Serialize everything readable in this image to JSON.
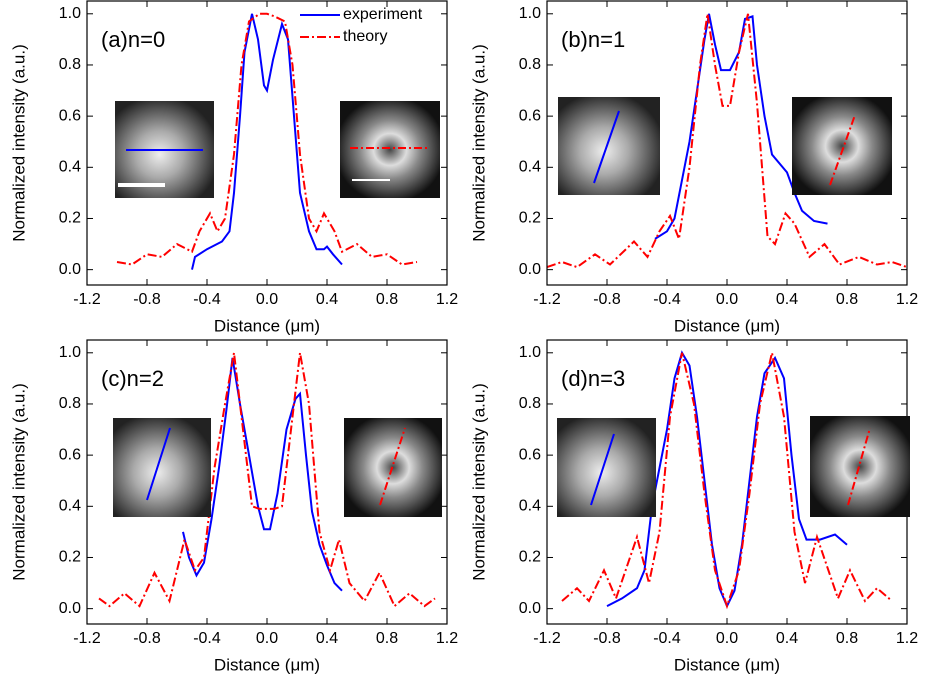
{
  "chart_data": [
    {
      "type": "line",
      "label": "(a)n=0",
      "xlabel": "Distance (μm)",
      "ylabel": "Normalized intensity (a.u.)",
      "legend": "upper right",
      "xlim": [
        -1.2,
        1.2
      ],
      "ylim": [
        -0.06,
        1.05
      ],
      "xticks": [
        -1.2,
        -0.8,
        -0.4,
        {
          "value": 0,
          "label": "0.0"
        },
        0.4,
        0.8,
        1.2
      ],
      "yticks": [
        {
          "value": 0,
          "label": "0.0"
        },
        0.2,
        0.4,
        0.6,
        0.8,
        {
          "value": 1,
          "label": "1.0"
        }
      ],
      "series": [
        {
          "name": "experiment",
          "color": "#0000ff",
          "style": "solid",
          "x": [
            -0.5,
            -0.48,
            -0.4,
            -0.3,
            -0.25,
            -0.22,
            -0.18,
            -0.15,
            -0.1,
            -0.06,
            -0.02,
            0,
            0.04,
            0.1,
            0.14,
            0.18,
            0.22,
            0.28,
            0.33,
            0.38,
            0.4,
            0.44,
            0.5
          ],
          "values": [
            0,
            0.05,
            0.08,
            0.11,
            0.15,
            0.3,
            0.6,
            0.85,
            1,
            0.9,
            0.72,
            0.7,
            0.82,
            0.96,
            0.9,
            0.6,
            0.3,
            0.15,
            0.08,
            0.08,
            0.09,
            0.06,
            0.02
          ]
        },
        {
          "name": "theory",
          "color": "#ff0000",
          "style": "dash-dot",
          "x": [
            -1,
            -0.9,
            -0.8,
            -0.7,
            -0.6,
            -0.5,
            -0.45,
            -0.38,
            -0.33,
            -0.28,
            -0.22,
            -0.17,
            -0.12,
            -0.05,
            0,
            0.05,
            0.12,
            0.17,
            0.22,
            0.28,
            0.33,
            0.38,
            0.45,
            0.5,
            0.6,
            0.7,
            0.8,
            0.9,
            1
          ],
          "values": [
            0.03,
            0.02,
            0.06,
            0.05,
            0.1,
            0.07,
            0.15,
            0.22,
            0.15,
            0.2,
            0.45,
            0.8,
            0.97,
            1,
            1,
            0.99,
            0.97,
            0.8,
            0.45,
            0.2,
            0.15,
            0.22,
            0.15,
            0.07,
            0.1,
            0.05,
            0.06,
            0.02,
            0.03
          ]
        }
      ]
    },
    {
      "type": "line",
      "label": "(b)n=1",
      "xlabel": "Distance (μm)",
      "ylabel": "Normalized intensity (a.u.)",
      "xlim": [
        -1.2,
        1.2
      ],
      "ylim": [
        -0.06,
        1.05
      ],
      "xticks": [
        -1.2,
        -0.8,
        -0.4,
        {
          "value": 0,
          "label": "0.0"
        },
        0.4,
        0.8,
        1.2
      ],
      "yticks": [
        {
          "value": 0,
          "label": "0.0"
        },
        0.2,
        0.4,
        0.6,
        0.8,
        {
          "value": 1,
          "label": "1.0"
        }
      ],
      "series": [
        {
          "color": "#0000ff",
          "style": "solid",
          "x": [
            -0.48,
            -0.4,
            -0.35,
            -0.3,
            -0.25,
            -0.2,
            -0.15,
            -0.12,
            -0.08,
            -0.04,
            0.02,
            0.08,
            0.12,
            0.17,
            0.2,
            0.25,
            0.3,
            0.4,
            0.45,
            0.5,
            0.58,
            0.67
          ],
          "values": [
            0.12,
            0.15,
            0.2,
            0.35,
            0.5,
            0.7,
            0.9,
            1,
            0.88,
            0.78,
            0.78,
            0.85,
            0.98,
            0.99,
            0.8,
            0.6,
            0.45,
            0.38,
            0.3,
            0.23,
            0.19,
            0.18
          ]
        },
        {
          "color": "#ff0000",
          "style": "dash-dot",
          "x": [
            -1.2,
            -1.1,
            -1,
            -0.88,
            -0.78,
            -0.62,
            -0.53,
            -0.45,
            -0.38,
            -0.32,
            -0.25,
            -0.18,
            -0.13,
            -0.08,
            -0.03,
            0.02,
            0.08,
            0.14,
            0.2,
            0.27,
            0.32,
            0.39,
            0.45,
            0.55,
            0.65,
            0.75,
            0.88,
            1,
            1.1,
            1.2
          ],
          "values": [
            0.01,
            0.03,
            0.01,
            0.06,
            0.02,
            0.11,
            0.05,
            0.15,
            0.21,
            0.12,
            0.4,
            0.8,
            1,
            0.8,
            0.64,
            0.64,
            0.85,
            1,
            0.65,
            0.13,
            0.1,
            0.22,
            0.18,
            0.05,
            0.1,
            0.02,
            0.05,
            0.02,
            0.03,
            0.01
          ]
        }
      ]
    },
    {
      "type": "line",
      "label": "(c)n=2",
      "xlabel": "Distance (μm)",
      "ylabel": "Normalized intensity (a.u.)",
      "xlim": [
        -1.2,
        1.2
      ],
      "ylim": [
        -0.06,
        1.05
      ],
      "xticks": [
        -1.2,
        -0.8,
        -0.4,
        {
          "value": 0,
          "label": "0.0"
        },
        0.4,
        0.8,
        1.2
      ],
      "yticks": [
        {
          "value": 0,
          "label": "0.0"
        },
        0.2,
        0.4,
        0.6,
        0.8,
        {
          "value": 1,
          "label": "1.0"
        }
      ],
      "series": [
        {
          "color": "#0000ff",
          "style": "solid",
          "x": [
            -0.56,
            -0.52,
            -0.47,
            -0.42,
            -0.37,
            -0.32,
            -0.27,
            -0.23,
            -0.18,
            -0.12,
            -0.06,
            -0.02,
            0.02,
            0.07,
            0.13,
            0.19,
            0.22,
            0.26,
            0.3,
            0.35,
            0.4,
            0.45,
            0.5
          ],
          "values": [
            0.3,
            0.2,
            0.13,
            0.18,
            0.35,
            0.55,
            0.78,
            0.98,
            0.8,
            0.6,
            0.4,
            0.31,
            0.31,
            0.45,
            0.7,
            0.82,
            0.84,
            0.6,
            0.38,
            0.25,
            0.17,
            0.1,
            0.07
          ]
        },
        {
          "color": "#ff0000",
          "style": "dash-dot",
          "x": [
            -1.12,
            -1.05,
            -0.95,
            -0.85,
            -0.75,
            -0.65,
            -0.55,
            -0.48,
            -0.42,
            -0.35,
            -0.28,
            -0.22,
            -0.17,
            -0.1,
            -0.05,
            0.05,
            0.1,
            0.17,
            0.22,
            0.28,
            0.35,
            0.42,
            0.48,
            0.55,
            0.65,
            0.75,
            0.85,
            0.95,
            1.05,
            1.12
          ],
          "values": [
            0.04,
            0.01,
            0.06,
            0.01,
            0.14,
            0.03,
            0.27,
            0.15,
            0.2,
            0.55,
            0.8,
            1,
            0.75,
            0.4,
            0.39,
            0.39,
            0.4,
            0.75,
            1,
            0.8,
            0.3,
            0.15,
            0.27,
            0.1,
            0.03,
            0.14,
            0.01,
            0.06,
            0.01,
            0.04
          ]
        }
      ]
    },
    {
      "type": "line",
      "label": "(d)n=3",
      "xlabel": "Distance (μm)",
      "ylabel": "Normalized intensity (a.u.)",
      "xlim": [
        -1.2,
        1.2
      ],
      "ylim": [
        -0.06,
        1.05
      ],
      "xticks": [
        -1.2,
        -0.8,
        -0.4,
        {
          "value": 0,
          "label": "0.0"
        },
        0.4,
        0.8,
        1.2
      ],
      "yticks": [
        {
          "value": 0,
          "label": "0.0"
        },
        0.2,
        0.4,
        0.6,
        0.8,
        {
          "value": 1,
          "label": "1.0"
        }
      ],
      "series": [
        {
          "color": "#0000ff",
          "style": "solid",
          "x": [
            -0.8,
            -0.7,
            -0.6,
            -0.55,
            -0.5,
            -0.45,
            -0.4,
            -0.35,
            -0.3,
            -0.25,
            -0.2,
            -0.15,
            -0.1,
            -0.05,
            0,
            0.05,
            0.1,
            0.15,
            0.2,
            0.25,
            0.32,
            0.38,
            0.43,
            0.48,
            0.53,
            0.62,
            0.72,
            0.8
          ],
          "values": [
            0.01,
            0.04,
            0.08,
            0.15,
            0.4,
            0.55,
            0.7,
            0.9,
            1,
            0.95,
            0.75,
            0.5,
            0.25,
            0.08,
            0.01,
            0.07,
            0.25,
            0.5,
            0.75,
            0.92,
            0.98,
            0.9,
            0.6,
            0.35,
            0.27,
            0.27,
            0.29,
            0.25
          ]
        },
        {
          "color": "#ff0000",
          "style": "dash-dot",
          "x": [
            -1.1,
            -1,
            -0.92,
            -0.82,
            -0.74,
            -0.6,
            -0.52,
            -0.45,
            -0.38,
            -0.3,
            -0.22,
            -0.15,
            -0.08,
            0,
            0.08,
            0.15,
            0.22,
            0.3,
            0.38,
            0.45,
            0.52,
            0.6,
            0.74,
            0.82,
            0.92,
            1,
            1.1
          ],
          "values": [
            0.03,
            0.08,
            0.03,
            0.15,
            0.04,
            0.28,
            0.1,
            0.3,
            0.75,
            1,
            0.8,
            0.45,
            0.15,
            0.01,
            0.15,
            0.45,
            0.8,
            1,
            0.75,
            0.3,
            0.1,
            0.28,
            0.04,
            0.15,
            0.03,
            0.08,
            0.03
          ]
        }
      ]
    }
  ]
}
